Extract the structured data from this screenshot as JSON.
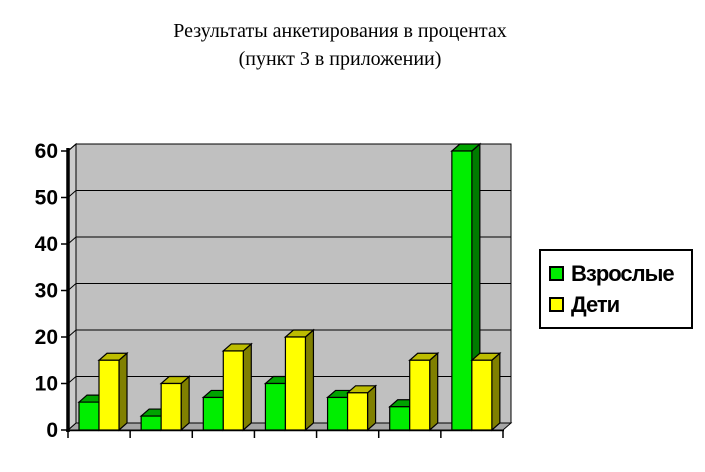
{
  "title": {
    "line1": "Результаты анкетирования в процентах",
    "line2": "(пункт 3 в приложении)"
  },
  "chart_data": {
    "type": "bar",
    "style": "3d-clustered-column",
    "title": "Результаты анкетирования в процентах (пункт 3 в приложении)",
    "categories": [
      "",
      "",
      "",
      "",
      "",
      "",
      ""
    ],
    "x_tick_labels_visible": false,
    "series": [
      {
        "name": "Взрослые",
        "values": [
          6,
          3,
          7,
          10,
          7,
          5,
          60
        ],
        "color": "#00EE00",
        "color_top": "#00A300",
        "color_side": "#007B00"
      },
      {
        "name": "Дети",
        "values": [
          15,
          10,
          17,
          20,
          8,
          15,
          15
        ],
        "color": "#FFFF00",
        "color_top": "#BDBD00",
        "color_side": "#808000"
      }
    ],
    "xlabel": "",
    "ylabel": "",
    "ylim": [
      0,
      60
    ],
    "yticks": [
      0,
      10,
      20,
      30,
      40,
      50,
      60
    ],
    "grid": true,
    "legend_position": "right",
    "colors": {
      "wall": "#C0C0C0",
      "side_wall": "#CCCCCC",
      "floor": "#A6A6A6",
      "gridline": "#000000",
      "axis": "#000000",
      "background": "#FFFFFF"
    }
  }
}
